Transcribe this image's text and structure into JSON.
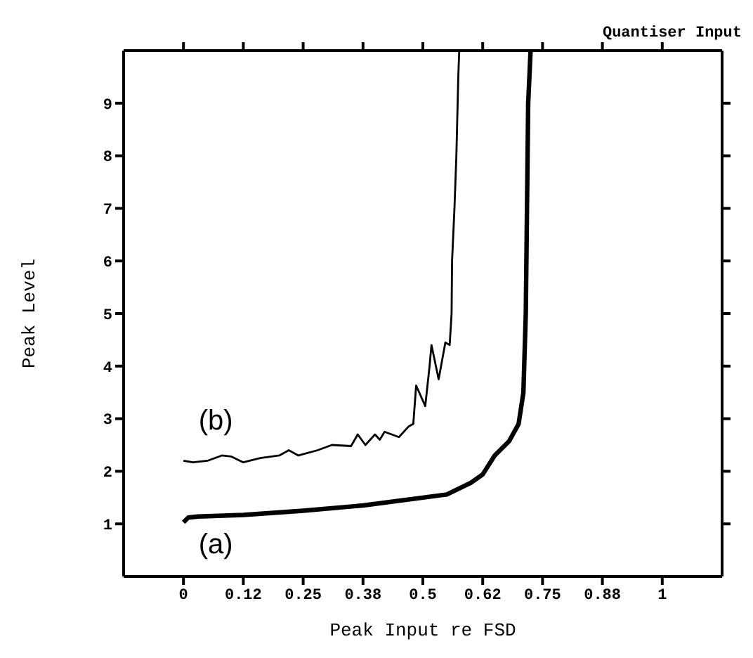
{
  "chart_data": {
    "type": "line",
    "title": "Quantiser Input",
    "xlabel": "Peak Input re FSD",
    "ylabel": "Peak Level",
    "xlim": [
      -0.125,
      1.125
    ],
    "xticks": [
      0,
      {
        "value": 0.125,
        "label": "0.12"
      },
      {
        "value": 0.25,
        "label": "0.25"
      },
      {
        "value": 0.375,
        "label": "0.38"
      },
      {
        "value": 0.5,
        "label": "0.5"
      },
      {
        "value": 0.625,
        "label": "0.62"
      },
      {
        "value": 0.75,
        "label": "0.75"
      },
      {
        "value": 0.875,
        "label": "0.88"
      },
      1
    ],
    "ylim": [
      0,
      10
    ],
    "yticks": [
      1,
      2,
      3,
      4,
      5,
      6,
      7,
      8,
      9
    ],
    "grid": false,
    "marker": "none",
    "line_style": "solid",
    "series": [
      {
        "color": "#000000",
        "x": [
          0,
          0.01,
          0.03,
          0.125,
          0.25,
          0.375,
          0.5,
          0.55,
          0.6,
          0.625,
          0.65,
          0.68,
          0.7,
          0.71,
          0.715,
          0.72,
          0.725
        ],
        "values": [
          1.03,
          1.12,
          1.14,
          1.17,
          1.25,
          1.35,
          1.5,
          1.56,
          1.78,
          1.94,
          2.3,
          2.57,
          2.9,
          3.5,
          5,
          9,
          10
        ]
      },
      {
        "color": "#000000",
        "x": [
          0,
          0.02,
          0.05,
          0.08,
          0.1,
          0.125,
          0.16,
          0.2,
          0.22,
          0.24,
          0.28,
          0.31,
          0.35,
          0.364,
          0.38,
          0.4,
          0.41,
          0.42,
          0.45,
          0.47,
          0.48,
          0.486,
          0.505,
          0.514,
          0.518,
          0.533,
          0.547,
          0.556,
          0.56,
          0.561,
          0.566,
          0.57,
          0.574,
          0.576
        ],
        "values": [
          2.2,
          2.17,
          2.2,
          2.3,
          2.28,
          2.17,
          2.25,
          2.3,
          2.4,
          2.3,
          2.4,
          2.5,
          2.48,
          2.7,
          2.5,
          2.7,
          2.6,
          2.75,
          2.65,
          2.85,
          2.9,
          3.63,
          3.24,
          4.0,
          4.4,
          3.75,
          4.45,
          4.4,
          5,
          6,
          7,
          8,
          9.5,
          10
        ]
      }
    ],
    "annotations": [
      "(b)",
      "(a)"
    ]
  }
}
